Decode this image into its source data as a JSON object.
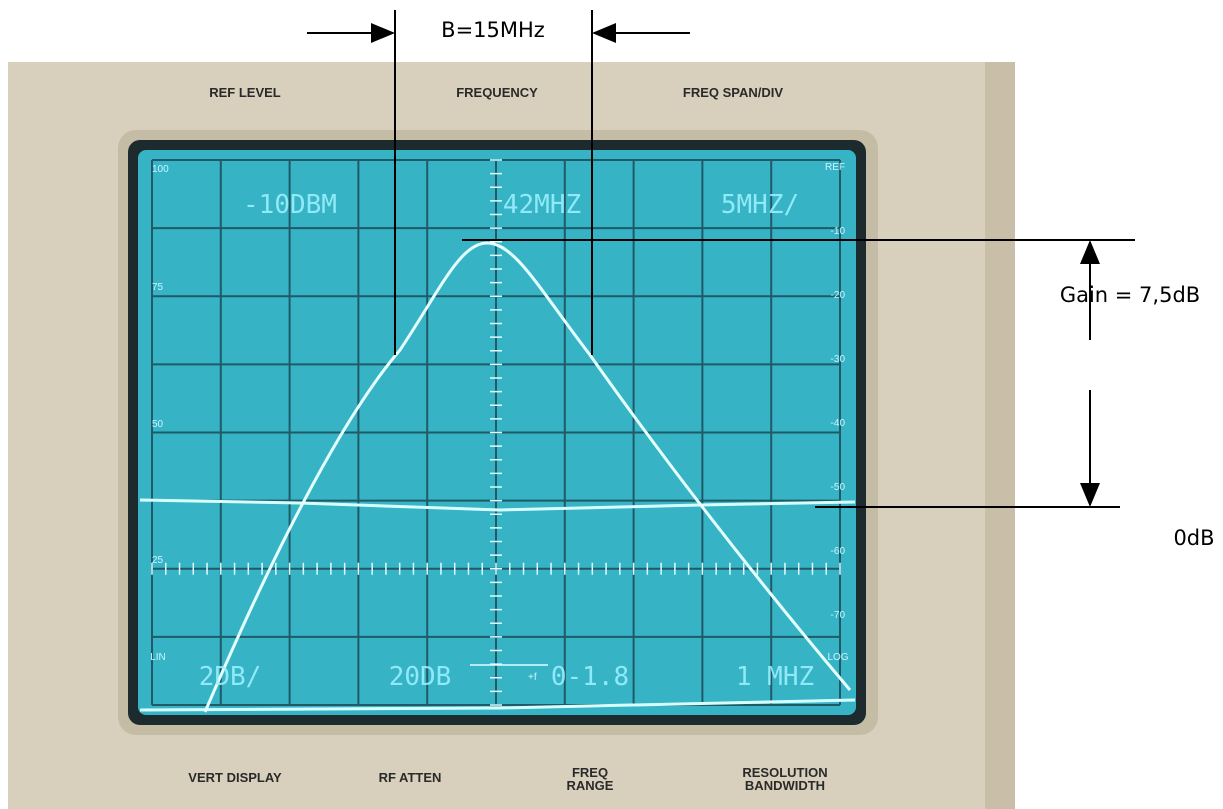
{
  "annotations": {
    "bandwidth": "B=15MHz",
    "gain": "Gain = 7,5dB",
    "reference": "0dB"
  },
  "panel_labels": {
    "top": [
      "REF LEVEL",
      "FREQUENCY",
      "FREQ SPAN/DIV"
    ],
    "bottom": [
      [
        "VERT DISPLAY"
      ],
      [
        "RF ATTEN"
      ],
      [
        "FREQ",
        "RANGE"
      ],
      [
        "RESOLUTION",
        "BANDWIDTH"
      ]
    ]
  },
  "screen": {
    "top_readouts": [
      "-10DBM",
      "42MHZ",
      "5MHZ/"
    ],
    "bottom_readouts": [
      "2DB/",
      "20DB",
      "0-1.8",
      "1 MHZ"
    ],
    "left_scale": [
      "100",
      "75",
      "50",
      "25"
    ],
    "right_scale": [
      "REF",
      "-10",
      "-20",
      "-30",
      "-40",
      "-50",
      "-60",
      "-70"
    ],
    "lin": "LIN",
    "log": "LOG",
    "freq_axis": "+f"
  }
}
